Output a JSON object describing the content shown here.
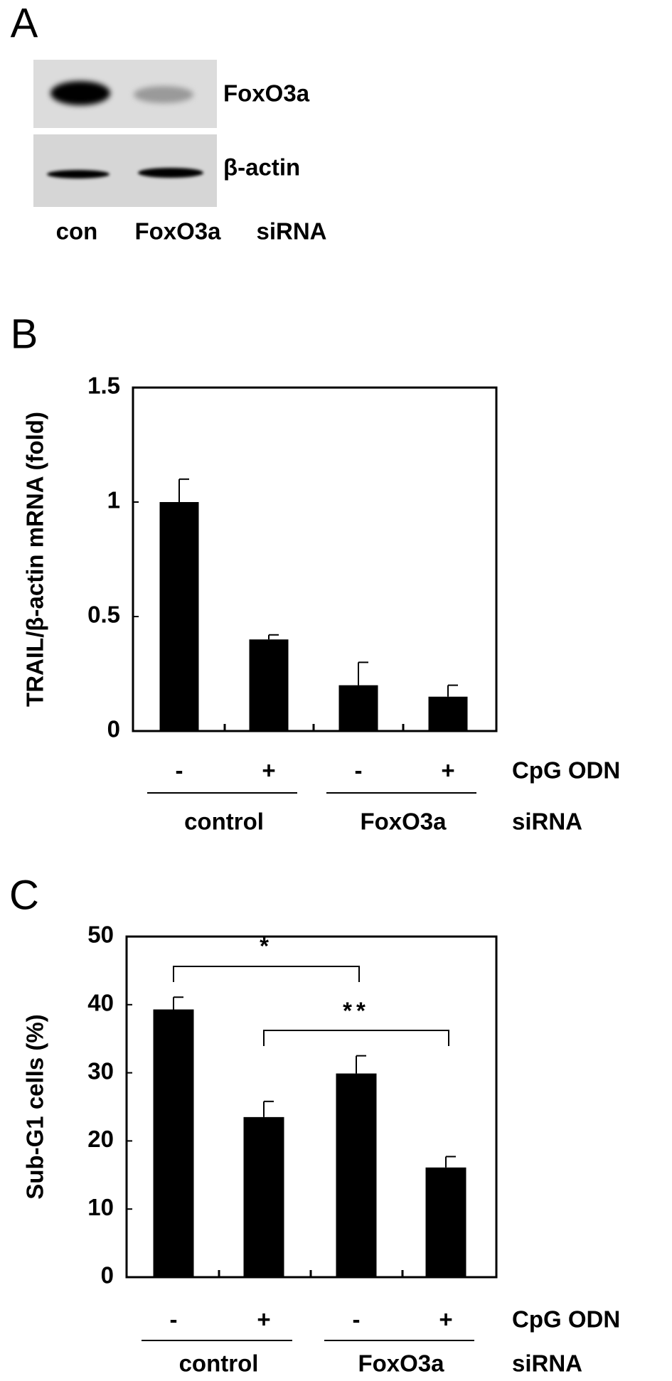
{
  "panel_a": {
    "label": "A",
    "bands": [
      "FoxO3a",
      "β-actin"
    ],
    "lanes": [
      "con",
      "FoxO3a",
      "siRNA"
    ]
  },
  "chart_data": [
    {
      "type": "bar",
      "panel": "B",
      "ylabel": "TRAIL/β-actin mRNA (fold)",
      "categories": [
        "-",
        "+",
        "-",
        "+"
      ],
      "values": [
        1.0,
        0.4,
        0.2,
        0.15
      ],
      "errors": [
        0.1,
        0.02,
        0.1,
        0.05
      ],
      "ylim": [
        0,
        1.5
      ],
      "yticks": [
        0,
        0.5,
        1,
        1.5
      ],
      "color": "#000000",
      "treatment_label": "CpG ODN",
      "groups": [
        "control",
        "FoxO3a"
      ],
      "group_label": "siRNA"
    },
    {
      "type": "bar",
      "panel": "C",
      "ylabel": "Sub-G1 cells (%)",
      "categories": [
        "-",
        "+",
        "-",
        "+"
      ],
      "values": [
        39.3,
        23.5,
        29.9,
        16.1
      ],
      "errors": [
        1.8,
        2.3,
        2.6,
        1.6
      ],
      "ylim": [
        0,
        50
      ],
      "yticks": [
        0,
        10,
        20,
        30,
        40,
        50
      ],
      "color": "#000000",
      "annotations": [
        "*",
        "**"
      ],
      "treatment_label": "CpG ODN",
      "groups": [
        "control",
        "FoxO3a"
      ],
      "group_label": "siRNA"
    }
  ]
}
